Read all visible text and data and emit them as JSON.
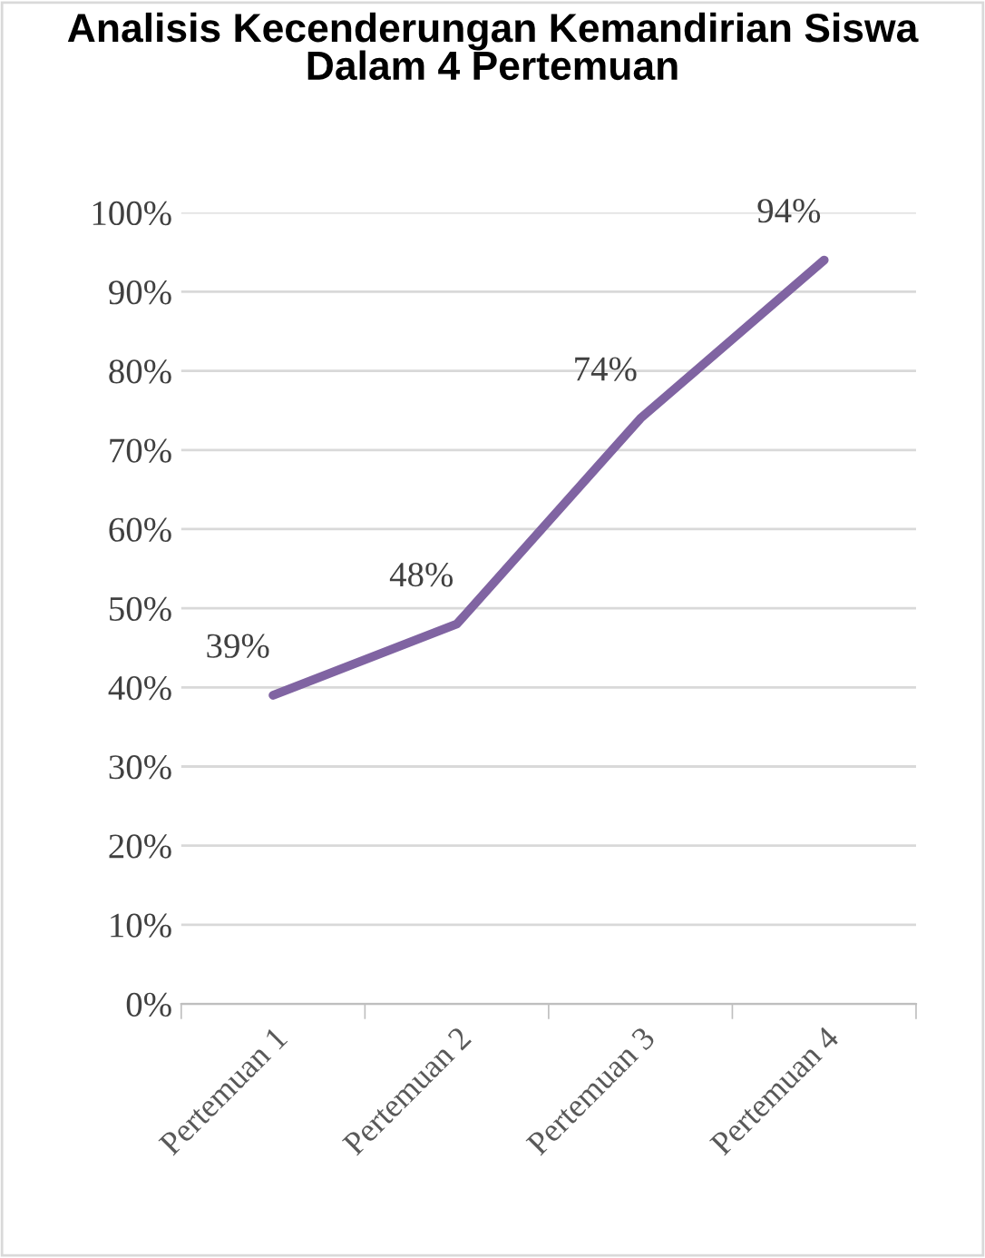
{
  "chart_data": {
    "type": "line",
    "title": "Analisis Kecenderungan Kemandirian Siswa Dalam 4 Pertemuan",
    "categories": [
      "Pertemuan 1",
      "Pertemuan 2",
      "Pertemuan 3",
      "Pertemuan 4"
    ],
    "series": [
      {
        "color": "#8064a2",
        "values": [
          39,
          48,
          74,
          94
        ],
        "value_labels": [
          "39%",
          "48%",
          "74%",
          "94%"
        ]
      }
    ],
    "ylim": [
      0,
      100
    ],
    "yticks": [
      {
        "value": 0,
        "label": "0%"
      },
      {
        "value": 10,
        "label": "10%"
      },
      {
        "value": 20,
        "label": "20%"
      },
      {
        "value": 30,
        "label": "30%"
      },
      {
        "value": 40,
        "label": "40%"
      },
      {
        "value": 50,
        "label": "50%"
      },
      {
        "value": 60,
        "label": "60%"
      },
      {
        "value": 70,
        "label": "70%"
      },
      {
        "value": 80,
        "label": "80%"
      },
      {
        "value": 90,
        "label": "90%"
      },
      {
        "value": 100,
        "label": "100%"
      }
    ],
    "grid": "y",
    "legend": false,
    "marker": "none",
    "line_style": "solid"
  }
}
